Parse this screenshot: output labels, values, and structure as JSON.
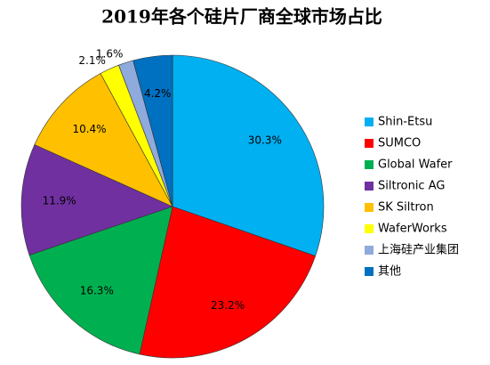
{
  "chart_data": {
    "type": "pie",
    "title": "2019年各个硅片厂商全球市场占比",
    "categories": [
      "Shin-Etsu",
      "SUMCO",
      "Global Wafer",
      "Siltronic AG",
      "SK Siltron",
      "WaferWorks",
      "上海硅产业集团",
      "其他"
    ],
    "values": [
      30.3,
      23.2,
      16.3,
      11.9,
      10.4,
      2.1,
      1.6,
      4.2
    ],
    "value_labels": [
      "30.3%",
      "23.2%",
      "16.3%",
      "11.9%",
      "10.4%",
      "2.1%",
      "1.6%",
      "4.2%"
    ],
    "colors": [
      "#00b0f0",
      "#ff0000",
      "#00b050",
      "#7030a0",
      "#ffc000",
      "#ffff00",
      "#8faadc",
      "#0070c0"
    ],
    "legend": "right"
  }
}
